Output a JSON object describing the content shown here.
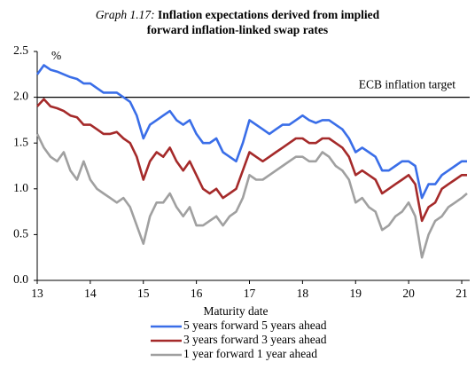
{
  "chart_data": {
    "type": "line",
    "title_prefix": "Graph 1.17:",
    "title": "Inflation expectations derived from implied forward inflation-linked swap rates",
    "y_unit": "%",
    "x_label": "Maturity date",
    "target": 2,
    "target_label": "ECB inflation target",
    "x": [
      13,
      13.125,
      13.25,
      13.375,
      13.5,
      13.625,
      13.75,
      13.875,
      14,
      14.125,
      14.25,
      14.375,
      14.5,
      14.625,
      14.75,
      14.875,
      15,
      15.125,
      15.25,
      15.375,
      15.5,
      15.625,
      15.75,
      15.875,
      16,
      16.125,
      16.25,
      16.375,
      16.5,
      16.625,
      16.75,
      16.875,
      17,
      17.125,
      17.25,
      17.375,
      17.5,
      17.625,
      17.75,
      17.875,
      18,
      18.125,
      18.25,
      18.375,
      18.5,
      18.625,
      18.75,
      18.875,
      19,
      19.125,
      19.25,
      19.375,
      19.5,
      19.625,
      19.75,
      19.875,
      20,
      20.125,
      20.25,
      20.375,
      20.5,
      20.625,
      20.75,
      20.875,
      21,
      21.1
    ],
    "series": [
      {
        "name": "5 years forward 5 years ahead",
        "color": "#3a6ee8",
        "values": [
          2.25,
          2.35,
          2.3,
          2.28,
          2.25,
          2.22,
          2.2,
          2.15,
          2.15,
          2.1,
          2.05,
          2.05,
          2.05,
          2.0,
          1.95,
          1.8,
          1.55,
          1.7,
          1.75,
          1.8,
          1.85,
          1.75,
          1.7,
          1.75,
          1.6,
          1.5,
          1.5,
          1.55,
          1.4,
          1.35,
          1.3,
          1.5,
          1.75,
          1.7,
          1.65,
          1.6,
          1.65,
          1.7,
          1.7,
          1.75,
          1.8,
          1.75,
          1.72,
          1.75,
          1.75,
          1.7,
          1.65,
          1.55,
          1.4,
          1.45,
          1.4,
          1.35,
          1.2,
          1.2,
          1.25,
          1.3,
          1.3,
          1.25,
          0.9,
          1.05,
          1.05,
          1.15,
          1.2,
          1.25,
          1.3,
          1.3
        ]
      },
      {
        "name": "3 years forward 3 years ahead",
        "color": "#a52a2a",
        "values": [
          1.9,
          1.98,
          1.9,
          1.88,
          1.85,
          1.8,
          1.78,
          1.7,
          1.7,
          1.65,
          1.6,
          1.6,
          1.62,
          1.55,
          1.5,
          1.35,
          1.1,
          1.3,
          1.4,
          1.35,
          1.45,
          1.3,
          1.2,
          1.3,
          1.15,
          1.0,
          0.95,
          1.0,
          0.9,
          0.95,
          1.0,
          1.2,
          1.4,
          1.35,
          1.3,
          1.35,
          1.4,
          1.45,
          1.5,
          1.55,
          1.55,
          1.5,
          1.5,
          1.55,
          1.55,
          1.5,
          1.45,
          1.35,
          1.15,
          1.2,
          1.15,
          1.1,
          0.95,
          1.0,
          1.05,
          1.1,
          1.15,
          1.05,
          0.65,
          0.8,
          0.85,
          1.0,
          1.05,
          1.1,
          1.15,
          1.15
        ]
      },
      {
        "name": "1 year forward 1 year ahead",
        "color": "#a0a0a0",
        "values": [
          1.6,
          1.45,
          1.35,
          1.3,
          1.4,
          1.2,
          1.1,
          1.3,
          1.1,
          1.0,
          0.95,
          0.9,
          0.85,
          0.9,
          0.8,
          0.6,
          0.4,
          0.7,
          0.85,
          0.85,
          0.95,
          0.8,
          0.7,
          0.8,
          0.6,
          0.6,
          0.65,
          0.7,
          0.6,
          0.7,
          0.75,
          0.9,
          1.15,
          1.1,
          1.1,
          1.15,
          1.2,
          1.25,
          1.3,
          1.35,
          1.35,
          1.3,
          1.3,
          1.4,
          1.35,
          1.25,
          1.2,
          1.1,
          0.85,
          0.9,
          0.8,
          0.75,
          0.55,
          0.6,
          0.7,
          0.75,
          0.85,
          0.7,
          0.25,
          0.5,
          0.65,
          0.7,
          0.8,
          0.85,
          0.9,
          0.95
        ]
      }
    ],
    "xlim": [
      13,
      21.15
    ],
    "xticks": [
      13,
      14,
      15,
      16,
      17,
      18,
      19,
      20,
      21
    ],
    "ylim": [
      0,
      2.5
    ],
    "yticks": [
      {
        "value": 0,
        "label": "0.0"
      },
      {
        "value": 0.5,
        "label": "0.5"
      },
      {
        "value": 1,
        "label": "1.0"
      },
      {
        "value": 1.5,
        "label": "1.5"
      },
      {
        "value": 2,
        "label": "2.0"
      },
      {
        "value": 2.5,
        "label": "2.5"
      }
    ],
    "grid": false
  }
}
